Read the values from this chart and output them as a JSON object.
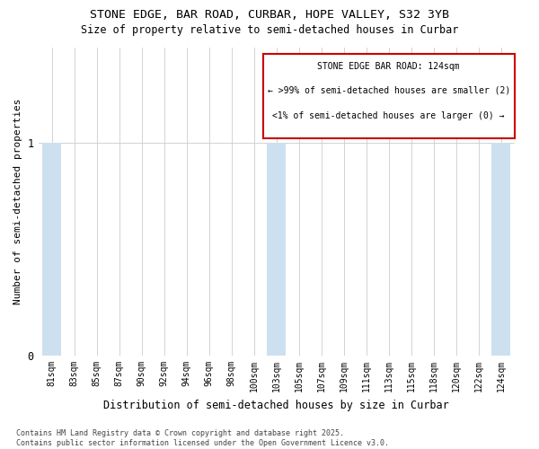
{
  "title1": "STONE EDGE, BAR ROAD, CURBAR, HOPE VALLEY, S32 3YB",
  "title2": "Size of property relative to semi-detached houses in Curbar",
  "xlabel": "Distribution of semi-detached houses by size in Curbar",
  "ylabel": "Number of semi-detached properties",
  "categories": [
    "81sqm",
    "83sqm",
    "85sqm",
    "87sqm",
    "90sqm",
    "92sqm",
    "94sqm",
    "96sqm",
    "98sqm",
    "100sqm",
    "103sqm",
    "105sqm",
    "107sqm",
    "109sqm",
    "111sqm",
    "113sqm",
    "115sqm",
    "118sqm",
    "120sqm",
    "122sqm",
    "124sqm"
  ],
  "values": [
    1,
    0,
    0,
    0,
    0,
    0,
    0,
    0,
    0,
    0,
    1,
    0,
    0,
    0,
    0,
    0,
    0,
    0,
    0,
    0,
    1
  ],
  "bar_color": "#cce0f0",
  "ylim": [
    0,
    1.45
  ],
  "yticks": [
    0,
    1
  ],
  "annotation_title": "STONE EDGE BAR ROAD: 124sqm",
  "annotation_line1": "← >99% of semi-detached houses are smaller (2)",
  "annotation_line2": "<1% of semi-detached houses are larger (0) →",
  "annotation_box_color": "#ffffff",
  "annotation_box_edge": "#cc0000",
  "footer1": "Contains HM Land Registry data © Crown copyright and database right 2025.",
  "footer2": "Contains public sector information licensed under the Open Government Licence v3.0.",
  "background_color": "#ffffff",
  "grid_color": "#cccccc"
}
